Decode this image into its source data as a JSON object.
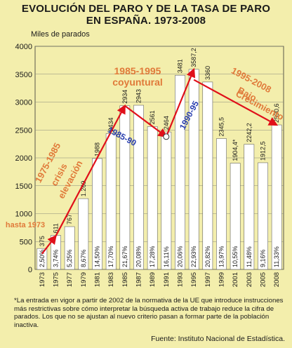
{
  "chart_data": {
    "type": "bar",
    "title_line1": "EVOLUCIÓN DEL PARO Y DE LA TASA DE PARO",
    "title_line2": "EN ESPAÑA. 1973-2008",
    "ylabel": "Miles de parados",
    "ylim": [
      0,
      4000
    ],
    "yticks": [
      0,
      500,
      1000,
      1500,
      2000,
      2500,
      3000,
      3500,
      4000
    ],
    "grid": true,
    "categories": [
      "1973",
      "1975",
      "1977",
      "1979",
      "1981",
      "1983",
      "1985",
      "1987",
      "1989",
      "1991",
      "1993",
      "1995",
      "1997",
      "1999",
      "2001",
      "2003",
      "2005",
      "2008"
    ],
    "values": [
      375,
      611,
      767,
      1269,
      1988,
      2434,
      2934,
      2943,
      2561,
      2464,
      3481,
      3587.2,
      3360,
      2345.5,
      1904.4,
      2242.2,
      1912.5,
      2590.6
    ],
    "value_labels": [
      "375",
      "611",
      "767",
      "1.269",
      "1988",
      "2434",
      "2934",
      "2943",
      "2561",
      "2464",
      "3481",
      "3587,2",
      "3360",
      "2345,5",
      "1904,4*",
      "2242,2",
      "1912,5",
      "2590,6"
    ],
    "rate_labels": [
      "2,50%",
      "3,74%",
      "5,25%",
      "8,67%",
      "14,50%",
      "17,70%",
      "21,67%",
      "20,08%",
      "17,28%",
      "16,11%",
      "20,06%",
      "22,93%",
      "20,82%",
      "13,97%",
      "10,55%",
      "11,48%",
      "9,16%",
      "11,33%"
    ],
    "bar_color": "#ffffff",
    "annotations": [
      {
        "text": "hasta 1973",
        "color": "#e07a3a"
      },
      {
        "text": "1975-1985",
        "color": "#e07a3a"
      },
      {
        "text": "crisis",
        "color": "#e07a3a"
      },
      {
        "text": "elevación",
        "color": "#e07a3a"
      },
      {
        "text": "1985-1995",
        "color": "#e07a3a"
      },
      {
        "text": "coyuntural",
        "color": "#e07a3a"
      },
      {
        "text": "1985-90",
        "color": "#2a3fb0"
      },
      {
        "text": "1990-95",
        "color": "#2a3fb0"
      },
      {
        "text": "1995-2008",
        "color": "#e07a3a"
      },
      {
        "text": "Bajo",
        "color": "#e07a3a"
      },
      {
        "text": "Crecimiento",
        "color": "#e07a3a"
      }
    ],
    "arrow_color": "#e0101a"
  },
  "footnote": "*La entrada en vigor a partir de 2002 de la normativa de la UE que introduce instrucciones más restrictivas sobre cómo interpretar la búsqueda activa de trabajo reduce la cifra de parados. Los que no se ajustan al nuevo criterio pasan a formar parte de la población inactiva.",
  "source": "Fuente: Instituto Nacional de Estadística."
}
